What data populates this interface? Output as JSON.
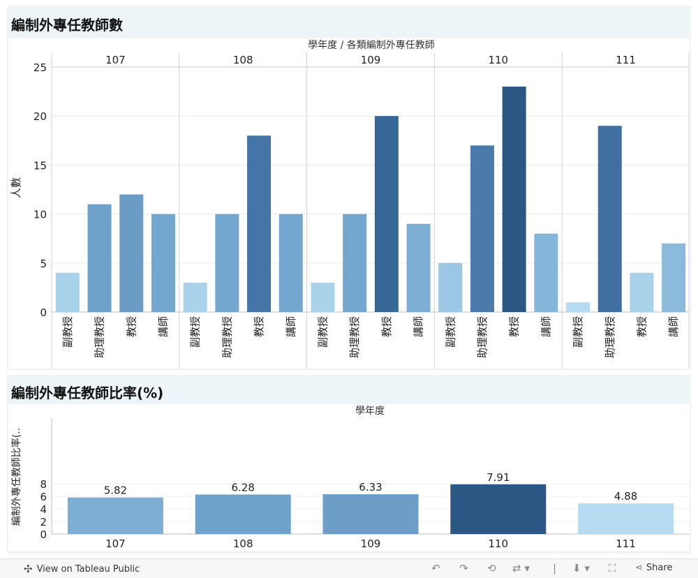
{
  "chart1": {
    "panel_title": "編制外專任教師數",
    "column_header": "學年度  /  各類編制外專任教師",
    "ylabel": "人數",
    "chart_data": {
      "type": "bar",
      "title": "編制外專任教師數",
      "ylabel": "人數",
      "xlabel": "學年度 / 各類編制外專任教師",
      "ylim": [
        0,
        25
      ],
      "yticks": [
        0,
        5,
        10,
        15,
        20,
        25
      ],
      "groups": [
        "107",
        "108",
        "109",
        "110",
        "111"
      ],
      "bars": [
        {
          "group": "107",
          "category": "副教授",
          "value": 4,
          "color": "#a8d1ea"
        },
        {
          "group": "107",
          "category": "助理教授",
          "value": 11,
          "color": "#6fa2ca"
        },
        {
          "group": "107",
          "category": "教授",
          "value": 12,
          "color": "#6a9cc6"
        },
        {
          "group": "107",
          "category": "講師",
          "value": 10,
          "color": "#74a7d0"
        },
        {
          "group": "108",
          "category": "副教授",
          "value": 3,
          "color": "#aad3eb"
        },
        {
          "group": "108",
          "category": "助理教授",
          "value": 10,
          "color": "#74a7d0"
        },
        {
          "group": "108",
          "category": "教授",
          "value": 18,
          "color": "#4575a6"
        },
        {
          "group": "108",
          "category": "講師",
          "value": 10,
          "color": "#74a7d0"
        },
        {
          "group": "109",
          "category": "副教授",
          "value": 3,
          "color": "#aad3eb"
        },
        {
          "group": "109",
          "category": "助理教授",
          "value": 10,
          "color": "#74a7d0"
        },
        {
          "group": "109",
          "category": "教授",
          "value": 20,
          "color": "#376796"
        },
        {
          "group": "109",
          "category": "講師",
          "value": 9,
          "color": "#7daed4"
        },
        {
          "group": "110",
          "category": "副教授",
          "value": 5,
          "color": "#9bc6e4"
        },
        {
          "group": "110",
          "category": "助理教授",
          "value": 17,
          "color": "#4b7bab"
        },
        {
          "group": "110",
          "category": "教授",
          "value": 23,
          "color": "#2c5785"
        },
        {
          "group": "110",
          "category": "講師",
          "value": 8,
          "color": "#85b5d8"
        },
        {
          "group": "111",
          "category": "副教授",
          "value": 1,
          "color": "#b7dcf1"
        },
        {
          "group": "111",
          "category": "助理教授",
          "value": 19,
          "color": "#416f9f"
        },
        {
          "group": "111",
          "category": "教授",
          "value": 4,
          "color": "#a8d1ea"
        },
        {
          "group": "111",
          "category": "講師",
          "value": 7,
          "color": "#8cbadb"
        }
      ]
    }
  },
  "chart2": {
    "panel_title": "編制外專任教師比率(%)",
    "column_header": "學年度",
    "ylabel": "編制外專任教師比率(..",
    "chart_data": {
      "type": "bar",
      "title": "編制外專任教師比率(%)",
      "xlabel": "學年度",
      "ylabel": "編制外專任教師比率(..",
      "ylim": [
        0,
        9
      ],
      "yticks": [
        0,
        2,
        4,
        6,
        8
      ],
      "categories": [
        "107",
        "108",
        "109",
        "110",
        "111"
      ],
      "values": [
        5.82,
        6.28,
        6.33,
        7.91,
        4.88
      ],
      "labels": [
        "5.82",
        "6.28",
        "6.33",
        "7.91",
        "4.88"
      ],
      "colors": [
        "#7daed4",
        "#6fa2ca",
        "#6c9ec8",
        "#2c5785",
        "#b7dcf1"
      ]
    }
  },
  "footer": {
    "view_link": "View on Tableau Public",
    "share_label": "Share",
    "icons": [
      "tableau-logo-icon",
      "undo-icon",
      "redo-icon",
      "revert-icon",
      "refresh-icon",
      "pause-icon",
      "download-icon",
      "fullscreen-icon",
      "share-icon"
    ]
  }
}
